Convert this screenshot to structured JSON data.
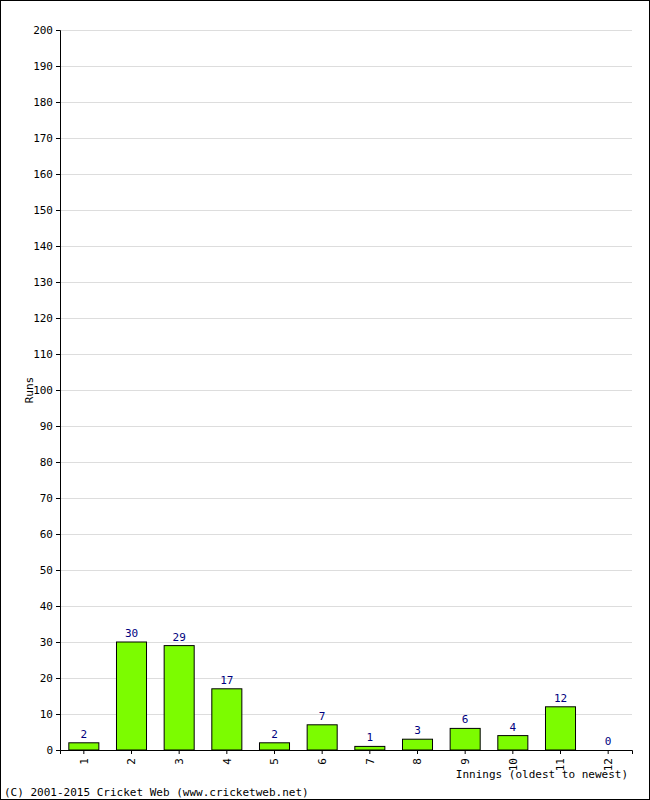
{
  "chart_data": {
    "type": "bar",
    "categories": [
      "1",
      "2",
      "3",
      "4",
      "5",
      "6",
      "7",
      "8",
      "9",
      "10",
      "11",
      "12"
    ],
    "values": [
      2,
      30,
      29,
      17,
      2,
      7,
      1,
      3,
      6,
      4,
      12,
      0
    ],
    "color": "#7cfc00",
    "x_label": "Innings (oldest to newest)",
    "y_label": "Runs",
    "annotations": [
      "(C) 2001-2015 Cricket Web (www.cricketweb.net)"
    ],
    "ylim": [
      0,
      200
    ],
    "yticks": [
      0,
      10,
      20,
      30,
      40,
      50,
      60,
      70,
      80,
      90,
      100,
      110,
      120,
      130,
      140,
      150,
      160,
      170,
      180,
      190,
      200
    ],
    "grid": true,
    "data_labels": true
  }
}
